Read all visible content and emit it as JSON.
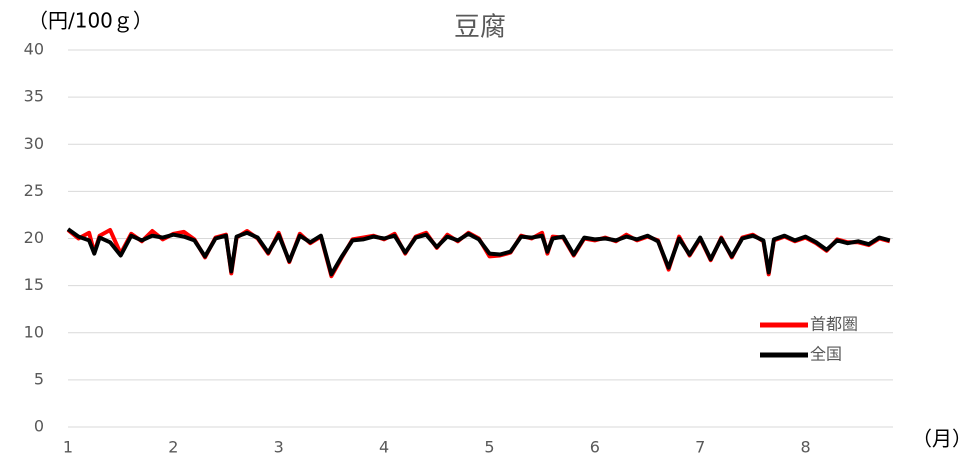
{
  "chart_data": {
    "type": "line",
    "title": "豆腐",
    "ylabel": "（円/100ｇ）",
    "xlabel": "（月）",
    "x": [
      1.0,
      1.1,
      1.2,
      1.25,
      1.3,
      1.4,
      1.5,
      1.6,
      1.7,
      1.8,
      1.9,
      2.0,
      2.1,
      2.2,
      2.3,
      2.4,
      2.5,
      2.55,
      2.6,
      2.7,
      2.8,
      2.9,
      3.0,
      3.1,
      3.2,
      3.3,
      3.4,
      3.5,
      3.6,
      3.7,
      3.8,
      3.9,
      4.0,
      4.1,
      4.2,
      4.3,
      4.4,
      4.5,
      4.6,
      4.7,
      4.8,
      4.9,
      5.0,
      5.1,
      5.2,
      5.3,
      5.4,
      5.5,
      5.55,
      5.6,
      5.7,
      5.8,
      5.9,
      6.0,
      6.1,
      6.2,
      6.3,
      6.4,
      6.5,
      6.6,
      6.7,
      6.8,
      6.9,
      7.0,
      7.1,
      7.2,
      7.3,
      7.4,
      7.5,
      7.6,
      7.65,
      7.7,
      7.8,
      7.9,
      8.0,
      8.1,
      8.2,
      8.3,
      8.4,
      8.5,
      8.6,
      8.7,
      8.8
    ],
    "series": [
      {
        "name": "首都圏",
        "color": "#ff0000",
        "values": [
          20.9,
          20.0,
          20.6,
          18.5,
          20.3,
          20.9,
          18.4,
          20.5,
          19.7,
          20.8,
          19.9,
          20.5,
          20.7,
          19.9,
          18.0,
          20.1,
          20.4,
          16.3,
          20.1,
          20.8,
          20.0,
          18.4,
          20.6,
          17.5,
          20.5,
          19.5,
          20.2,
          16.0,
          18.0,
          19.9,
          20.1,
          20.3,
          19.9,
          20.5,
          18.4,
          20.2,
          20.6,
          19.0,
          20.4,
          19.7,
          20.6,
          20.0,
          18.1,
          18.2,
          18.5,
          20.3,
          20.0,
          20.6,
          18.4,
          20.2,
          20.1,
          18.2,
          20.0,
          19.8,
          20.1,
          19.7,
          20.4,
          19.8,
          20.2,
          19.8,
          16.7,
          20.2,
          18.2,
          20.0,
          17.7,
          20.1,
          18.0,
          20.1,
          20.4,
          19.7,
          16.2,
          19.8,
          20.2,
          19.7,
          20.1,
          19.5,
          18.7,
          19.9,
          19.6,
          19.6,
          19.3,
          20.0,
          19.7
        ]
      },
      {
        "name": "全国",
        "color": "#000000",
        "values": [
          21.0,
          20.2,
          19.8,
          18.4,
          20.1,
          19.6,
          18.2,
          20.3,
          19.8,
          20.3,
          20.1,
          20.4,
          20.2,
          19.8,
          18.1,
          20.0,
          20.3,
          16.5,
          20.2,
          20.6,
          20.1,
          18.5,
          20.4,
          17.6,
          20.3,
          19.6,
          20.3,
          16.2,
          18.1,
          19.8,
          19.9,
          20.2,
          20.0,
          20.3,
          18.5,
          20.1,
          20.4,
          19.1,
          20.2,
          19.8,
          20.5,
          19.9,
          18.4,
          18.3,
          18.6,
          20.2,
          20.1,
          20.3,
          18.6,
          20.0,
          20.2,
          18.3,
          20.1,
          19.9,
          20.0,
          19.8,
          20.2,
          19.9,
          20.3,
          19.7,
          16.9,
          20.0,
          18.3,
          20.1,
          17.8,
          20.0,
          18.1,
          20.0,
          20.3,
          19.8,
          16.4,
          19.9,
          20.3,
          19.8,
          20.2,
          19.6,
          18.8,
          19.8,
          19.5,
          19.7,
          19.4,
          20.1,
          19.8
        ]
      }
    ],
    "xlim": [
      1,
      8.83
    ],
    "xticks": [
      1,
      2,
      3,
      4,
      5,
      6,
      7,
      8
    ],
    "ylim": [
      0,
      40
    ],
    "yticks": [
      0,
      5,
      10,
      15,
      20,
      25,
      30,
      35,
      40
    ],
    "grid": true,
    "legend": "right"
  }
}
